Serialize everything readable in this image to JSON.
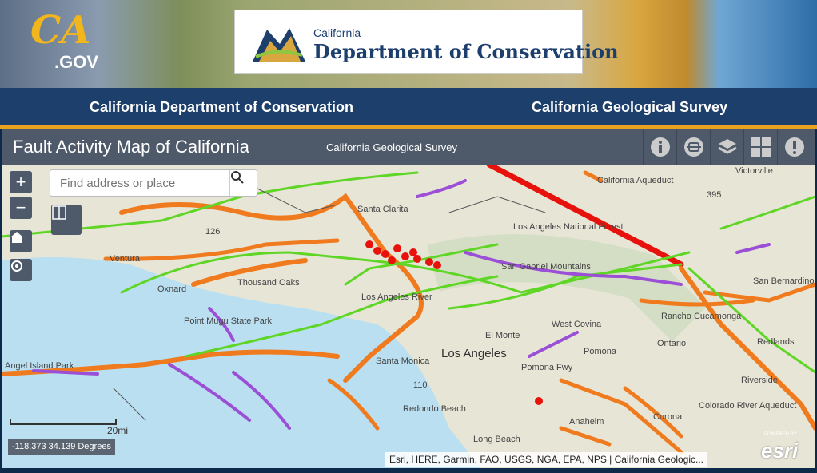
{
  "banner": {
    "ca_logo": "CA",
    "ca_logo_suffix": ".GOV",
    "doc_small": "California",
    "doc_big": "Department of Conservation"
  },
  "nav": {
    "links": [
      "California Department of Conservation",
      "California Geological Survey"
    ]
  },
  "app": {
    "title": "Fault Activity Map of California",
    "subtitle": "California Geological Survey",
    "toolbar": [
      {
        "icon": "info-icon"
      },
      {
        "icon": "basemap-icon"
      },
      {
        "icon": "layers-icon"
      },
      {
        "icon": "grid-icon"
      },
      {
        "icon": "alert-icon"
      }
    ]
  },
  "map": {
    "search_placeholder": "Find address or place",
    "zoom_in": "+",
    "zoom_out": "−",
    "coordinates": "-118.373 34.139 Degrees",
    "scale_label": "20mi",
    "attribution": "Esri, HERE, Garmin, FAO, USGS, NGA, EPA, NPS | California Geologic...",
    "esri_logo": "esri",
    "powered_by": "POWERED BY",
    "places": [
      "Victorville",
      "California Aqueduct",
      "Santa Clarita",
      "Los Angeles National Forest",
      "Ventura",
      "Oxnard",
      "Thousand Oaks",
      "San Gabriel Mountains",
      "Los Angeles River",
      "El Monte",
      "West Covina",
      "Rancho Cucamonga",
      "San Bernardino",
      "Redlands",
      "Ontario",
      "Pomona",
      "Los Angeles",
      "Santa Monica",
      "Riverside",
      "Redondo Beach",
      "Anaheim",
      "Corona",
      "Colorado River Aqueduct",
      "Long Beach",
      "Pomona Fwy",
      "395",
      "126",
      "110",
      "Point Mugu State Park",
      "Angel Island Park"
    ],
    "fault_colors": {
      "historic": "#e8120c",
      "holocene": "#f07a1e",
      "late_quaternary": "#5fd626",
      "quaternary": "#9b4fd6",
      "pre_quaternary": "#555555"
    },
    "ocean_color": "#b9dff0"
  }
}
